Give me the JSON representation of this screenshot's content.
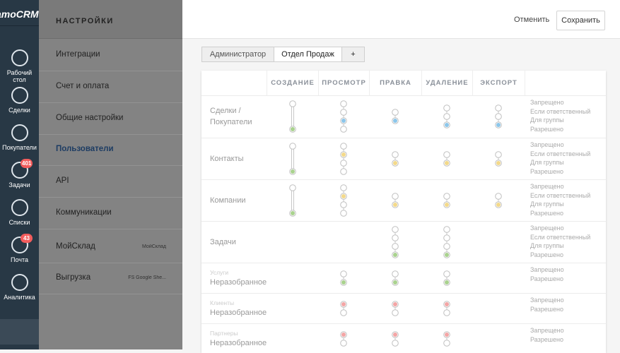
{
  "sidebar": {
    "logo": "amoCRM",
    "items": [
      {
        "label": "Рабочий стол"
      },
      {
        "label": "Сделки"
      },
      {
        "label": "Покупатели"
      },
      {
        "label": "Задачи",
        "badge": 401
      },
      {
        "label": "Списки"
      },
      {
        "label": "Почта",
        "badge": 43
      },
      {
        "label": "Аналитика"
      }
    ]
  },
  "settings_menu": {
    "title": "НАСТРОЙКИ",
    "items": [
      {
        "label": "Интеграции"
      },
      {
        "label": "Счет и оплата"
      },
      {
        "label": "Общие настройки"
      },
      {
        "label": "Пользователи"
      },
      {
        "label": "API"
      },
      {
        "label": "Коммуникации"
      },
      {
        "label": "МойСклад",
        "note": "МойСклад"
      },
      {
        "label": "Выгрузка",
        "note": "FS Google She..."
      }
    ]
  },
  "toolbar": {
    "cancel": "Отменить",
    "save": "Сохранить"
  },
  "tabs": [
    "Администратор",
    "Отдел Продаж",
    "+"
  ],
  "table": {
    "columns": [
      "СОЗДАНИЕ",
      "ПРОСМОТР",
      "ПРАВКА",
      "УДАЛЕНИЕ",
      "ЭКСПОРТ"
    ],
    "rows": [
      {
        "label": "Сделки / Покупатели",
        "legend": [
          "Запрещено",
          "Если ответственный",
          "Для группы",
          "Разрешено"
        ]
      },
      {
        "label": "Контакты",
        "legend": [
          "Запрещено",
          "Если ответственный",
          "Для группы",
          "Разрешено"
        ]
      },
      {
        "label": "Компании",
        "legend": [
          "Запрещено",
          "Если ответственный",
          "Для группы",
          "Разрешено"
        ]
      },
      {
        "label": "Задачи",
        "legend": [
          "Запрещено",
          "Если ответственный",
          "Для группы",
          "Разрешено"
        ]
      },
      {
        "sublabel": "Услуги",
        "label": "Неразобранное",
        "legend": [
          "Запрещено",
          "Разрешено"
        ]
      },
      {
        "sublabel": "Клиенты",
        "label": "Неразобранное",
        "legend": [
          "Запрещено",
          "Разрешено"
        ]
      },
      {
        "sublabel": "Партнеры",
        "label": "Неразобранное",
        "legend": [
          "Запрещено",
          "Разрешено"
        ]
      }
    ]
  }
}
